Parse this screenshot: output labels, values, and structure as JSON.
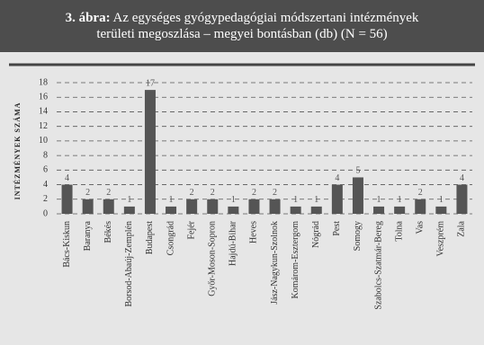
{
  "chart_data": {
    "type": "bar",
    "figure_label": "3. ábra:",
    "title": [
      "Az egységes gyógypedagógiai módszertani intézmények",
      "területi megoszlása – megyei bontásban (db) (N = 56)"
    ],
    "y_label": "INTÉZMÉNYEK SZÁMA",
    "categories": [
      "Bács-Kiskun",
      "Baranya",
      "Békés",
      "Borsod-Abaúj-Zemplén",
      "Budapest",
      "Csongrád",
      "Fejér",
      "Győr-Moson-Sopron",
      "Hajdú-Bihar",
      "Heves",
      "Jász-Nagykun-Szolnok",
      "Komárom-Esztergom",
      "Nógrád",
      "Pest",
      "Somogy",
      "Szabolcs-Szatmár-Bereg",
      "Tolna",
      "Vas",
      "Veszprém",
      "Zala"
    ],
    "values": [
      4,
      2,
      2,
      1,
      17,
      1,
      2,
      2,
      1,
      2,
      2,
      1,
      1,
      4,
      5,
      1,
      1,
      2,
      1,
      4
    ],
    "color": "#555555",
    "ylim": [
      0,
      18
    ],
    "yticks": [
      0,
      2,
      4,
      6,
      8,
      10,
      12,
      14,
      16,
      18
    ],
    "grid": true
  }
}
